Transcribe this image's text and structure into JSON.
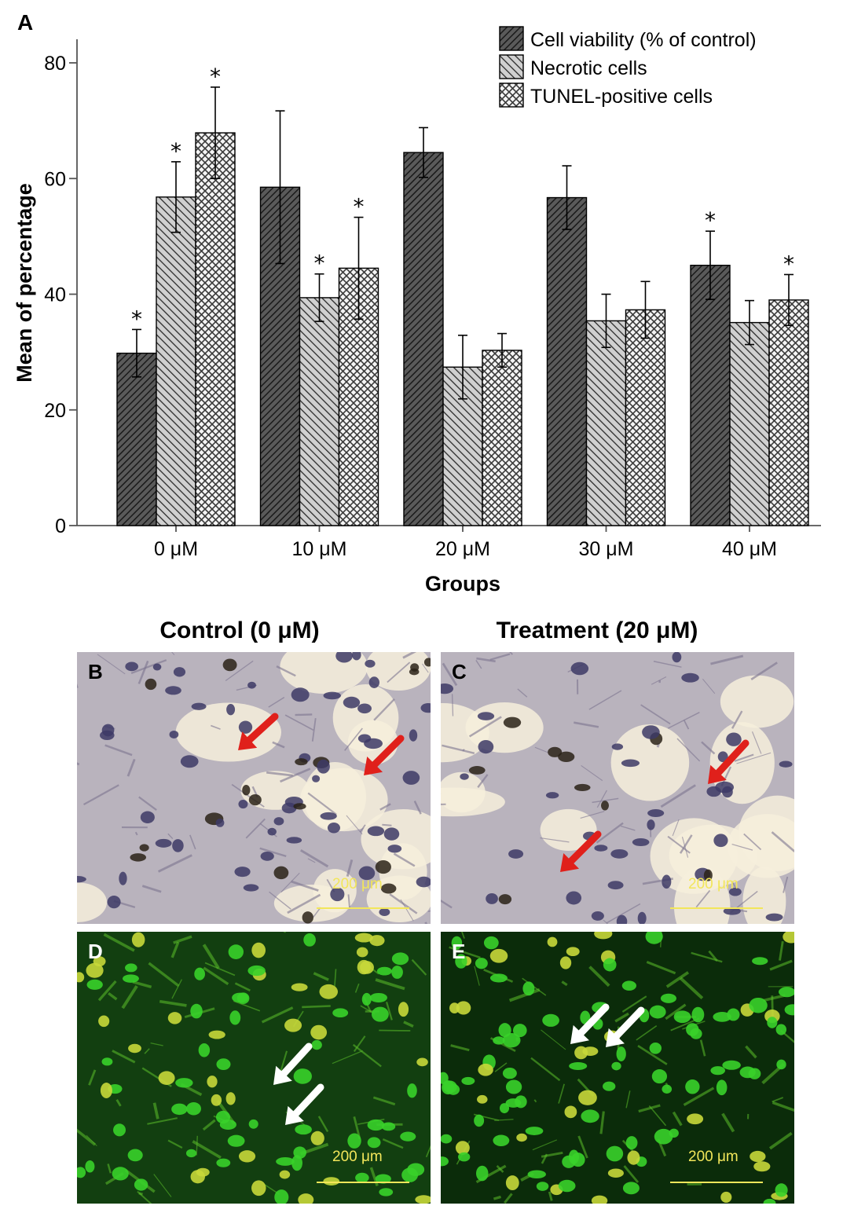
{
  "figure_label": "A",
  "chart_data": {
    "type": "bar",
    "categories": [
      "0 μM",
      "10 μM",
      "20 μM",
      "30 μM",
      "40 μM"
    ],
    "series": [
      {
        "name": "Cell viability (% of control)",
        "values": [
          29.8,
          58.5,
          64.5,
          56.7,
          45.0
        ],
        "errors": [
          4.1,
          13.2,
          4.3,
          5.5,
          5.9
        ],
        "significant": [
          true,
          false,
          false,
          false,
          true
        ]
      },
      {
        "name": "Necrotic cells",
        "values": [
          56.8,
          39.4,
          27.4,
          35.4,
          35.1
        ],
        "errors": [
          6.1,
          4.1,
          5.5,
          4.6,
          3.8
        ],
        "significant": [
          true,
          true,
          false,
          false,
          false
        ]
      },
      {
        "name": "TUNEL-positive cells",
        "values": [
          67.9,
          44.5,
          30.3,
          37.3,
          39.0
        ],
        "errors": [
          7.9,
          8.8,
          2.9,
          4.9,
          4.4
        ],
        "significant": [
          true,
          true,
          false,
          false,
          true
        ]
      }
    ],
    "significance_marker": "*",
    "xlabel": "Groups",
    "ylabel": "Mean of percentage",
    "ylim": [
      0,
      86
    ],
    "yticks": [
      0,
      20,
      40,
      60,
      80
    ],
    "grid": false,
    "legend_position": "top-right",
    "colors": {
      "bar_fill": "#3a3a3a",
      "bar_fill_light": "#d8d8d8",
      "outline": "#000000"
    }
  },
  "images": {
    "col_titles": [
      "Control (0 μM)",
      "Treatment (20 μM)"
    ],
    "panels": [
      {
        "letter": "B",
        "scale_label": "200 μm",
        "kind": "brightfield"
      },
      {
        "letter": "C",
        "scale_label": "200 μm",
        "kind": "brightfield"
      },
      {
        "letter": "D",
        "scale_label": "200 μm",
        "kind": "fluorescence"
      },
      {
        "letter": "E",
        "scale_label": "200 μm",
        "kind": "fluorescence"
      }
    ],
    "colors": {
      "scale_bar": "#f2e65a",
      "arrow_brightfield": "#e0201b",
      "arrow_fluorescence": "#ffffff"
    }
  }
}
